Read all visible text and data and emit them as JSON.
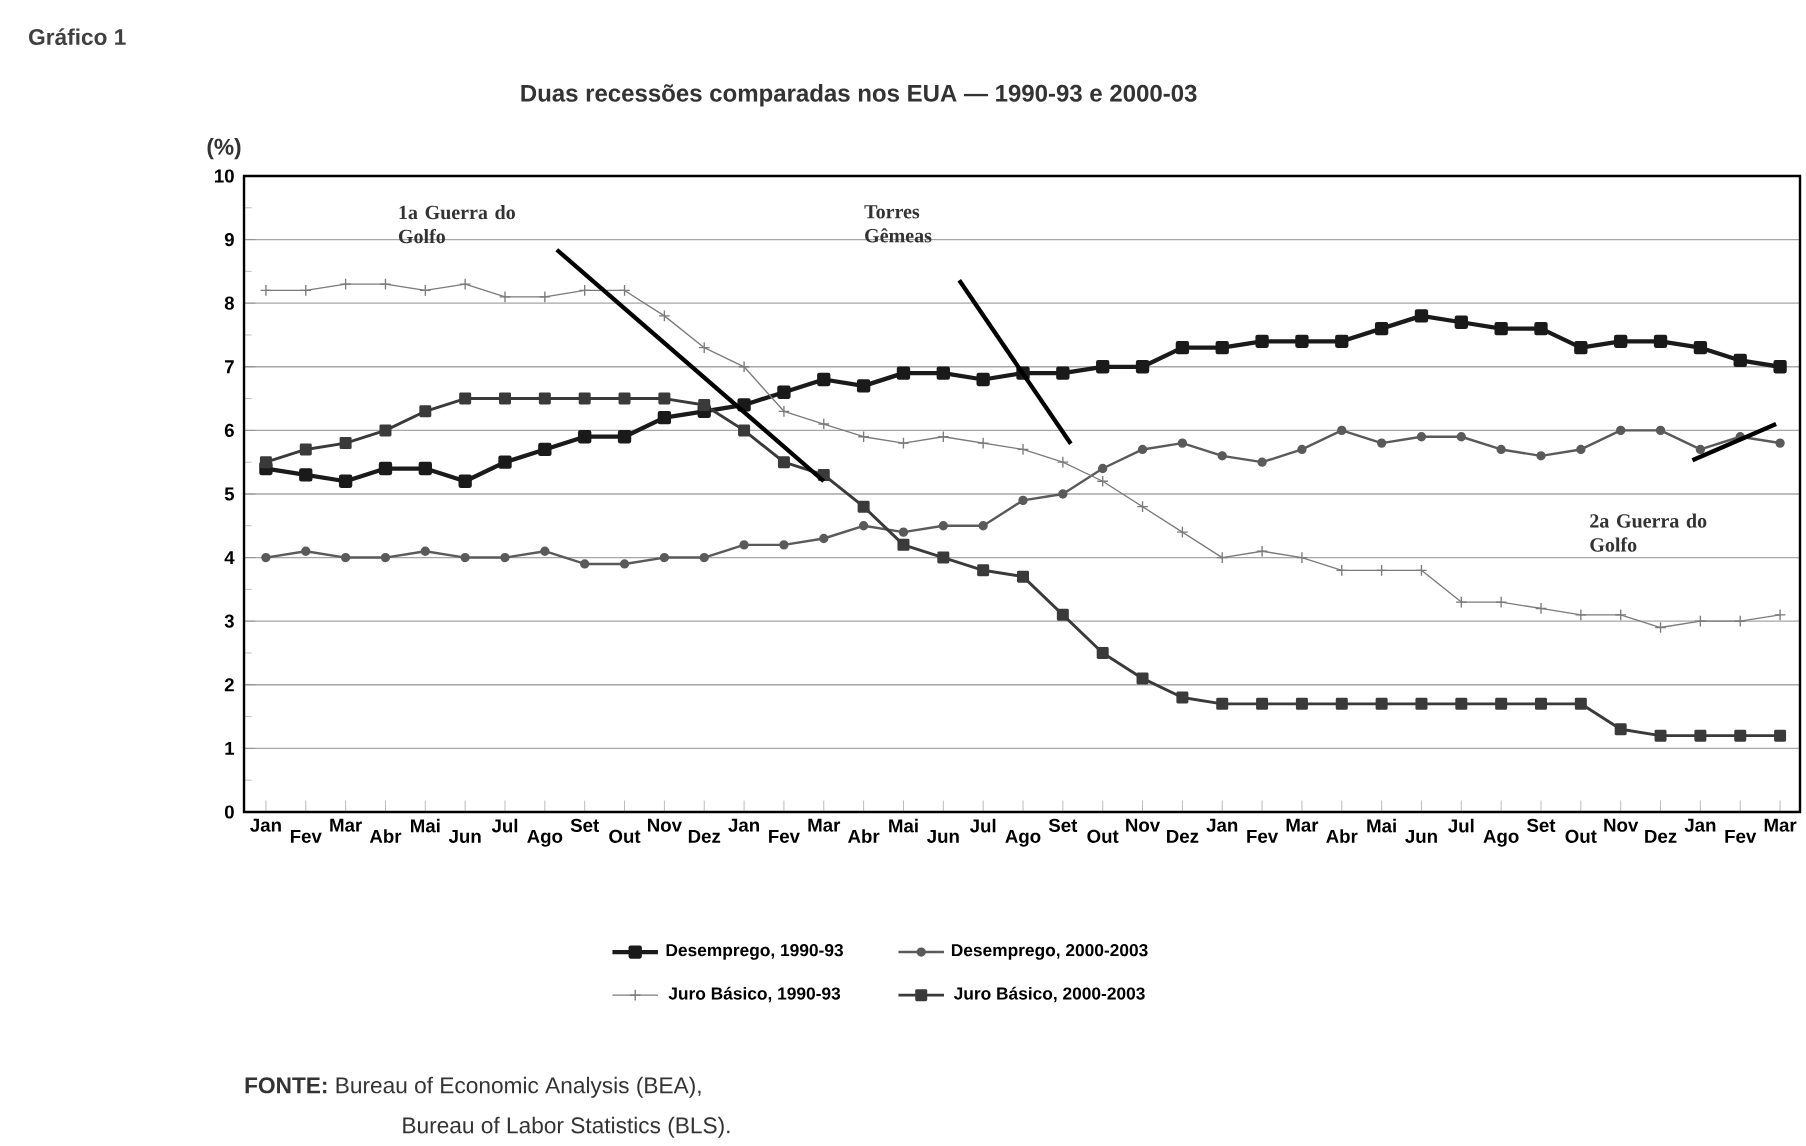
{
  "chart_data": {
    "type": "line",
    "title": "Duas recessões comparadas nos EUA — 1990-93 e 2000-03",
    "ylabel": "(%)",
    "categories": [
      "Jan",
      "Fev",
      "Mar",
      "Abr",
      "Mai",
      "Jun",
      "Jul",
      "Ago",
      "Set",
      "Out",
      "Nov",
      "Dez",
      "Jan",
      "Fev",
      "Mar",
      "Abr",
      "Mai",
      "Jun",
      "Jul",
      "Ago",
      "Set",
      "Out",
      "Nov",
      "Dez",
      "Jan",
      "Fev",
      "Mar",
      "Abr",
      "Mai",
      "Jun",
      "Jul",
      "Ago",
      "Set",
      "Out",
      "Nov",
      "Dez",
      "Jan",
      "Fev",
      "Mar"
    ],
    "series": [
      {
        "name": "Desemprego, 1990-93",
        "color": "#1a1a1a",
        "marker": "square",
        "values": [
          5.4,
          5.3,
          5.2,
          5.4,
          5.4,
          5.2,
          5.5,
          5.7,
          5.9,
          5.9,
          6.2,
          6.3,
          6.4,
          6.6,
          6.8,
          6.7,
          6.9,
          6.9,
          6.8,
          6.9,
          6.9,
          7.0,
          7.0,
          7.3,
          7.3,
          7.4,
          7.4,
          7.4,
          7.6,
          7.8,
          7.7,
          7.6,
          7.6,
          7.3,
          7.4,
          7.4,
          7.3,
          7.1,
          7.0
        ]
      },
      {
        "name": "Desemprego, 2000-2003",
        "color": "#5a5a5a",
        "marker": "circle",
        "values": [
          4.0,
          4.1,
          4.0,
          4.0,
          4.1,
          4.0,
          4.0,
          4.1,
          3.9,
          3.9,
          4.0,
          4.0,
          4.2,
          4.2,
          4.3,
          4.5,
          4.4,
          4.5,
          4.5,
          4.9,
          5.0,
          5.4,
          5.7,
          5.8,
          5.6,
          5.5,
          5.7,
          6.0,
          5.8,
          5.9,
          5.9,
          5.7,
          5.6,
          5.7,
          6.0,
          6.0,
          5.7,
          5.9,
          5.8
        ]
      },
      {
        "name": "Juro Básico, 1990-93",
        "color": "#7a7a7a",
        "marker": "cross",
        "values": [
          8.2,
          8.2,
          8.3,
          8.3,
          8.2,
          8.3,
          8.1,
          8.1,
          8.2,
          8.2,
          7.8,
          7.3,
          7.0,
          6.3,
          6.1,
          5.9,
          5.8,
          5.9,
          5.8,
          5.7,
          5.5,
          5.2,
          4.8,
          4.4,
          4.0,
          4.1,
          4.0,
          3.8,
          3.8,
          3.8,
          3.3,
          3.3,
          3.2,
          3.1,
          3.1,
          2.9,
          3.0,
          3.0,
          3.1
        ]
      },
      {
        "name": "Juro Básico, 2000-2003",
        "color": "#3a3a3a",
        "marker": "square",
        "values": [
          5.5,
          5.7,
          5.8,
          6.0,
          6.3,
          6.5,
          6.5,
          6.5,
          6.5,
          6.5,
          6.5,
          6.4,
          6.0,
          5.5,
          5.3,
          4.8,
          4.2,
          4.0,
          3.8,
          3.7,
          3.1,
          2.5,
          2.1,
          1.8,
          1.7,
          1.7,
          1.7,
          1.7,
          1.7,
          1.7,
          1.7,
          1.7,
          1.7,
          1.7,
          1.3,
          1.2,
          1.2,
          1.2,
          1.2
        ]
      }
    ],
    "ylim": [
      0,
      10
    ],
    "yticks": [
      0,
      1,
      2,
      3,
      4,
      5,
      6,
      7,
      8,
      9,
      10
    ],
    "grid": "y",
    "legend": "bottom",
    "annotations": [
      "Gráfico 1",
      "1a Guerra do Golfo",
      "Torres Gêmeas",
      "2a Guerra do Golfo",
      "**FONTE:** Bureau of Economic Analysis (BEA),",
      "Bureau of Labor  Statistics (BLS)."
    ]
  }
}
